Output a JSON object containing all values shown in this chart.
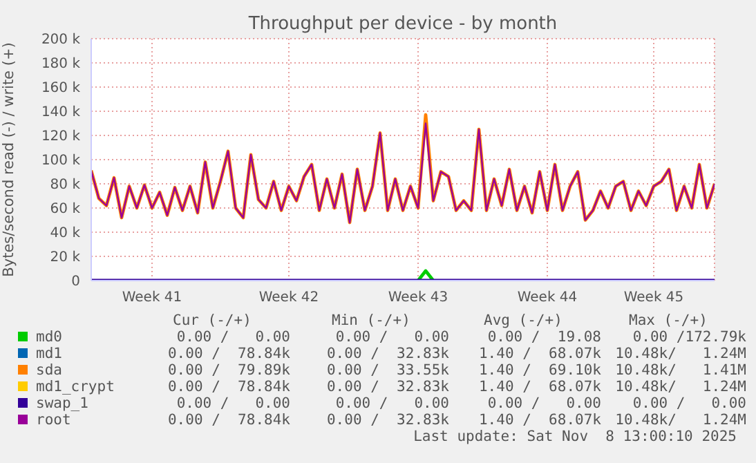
{
  "chart_data": {
    "type": "line",
    "title": "Throughput per device - by month",
    "ylabel": "Bytes/second read (-) / write (+)",
    "categories": [
      null,
      null,
      null,
      null,
      null,
      null,
      null,
      null,
      "Week 41",
      null,
      null,
      null,
      null,
      null,
      null,
      null,
      null,
      null,
      null,
      null,
      null,
      null,
      null,
      null,
      null,
      null,
      "Week 42",
      null,
      null,
      null,
      null,
      null,
      null,
      null,
      null,
      null,
      null,
      null,
      null,
      null,
      null,
      null,
      null,
      "Week 43",
      null,
      null,
      null,
      null,
      null,
      null,
      null,
      null,
      null,
      null,
      null,
      null,
      null,
      null,
      null,
      null,
      "Week 44",
      null,
      null,
      null,
      null,
      null,
      null,
      null,
      null,
      null,
      null,
      null,
      null,
      null,
      "Week 45",
      null,
      null,
      null,
      null,
      null,
      null,
      null,
      null
    ],
    "ylim": [
      0,
      200000
    ],
    "yticks": [
      0,
      {
        "value": 20000,
        "label": "20 k"
      },
      {
        "value": 40000,
        "label": "40 k"
      },
      {
        "value": 60000,
        "label": "60 k"
      },
      {
        "value": 80000,
        "label": "80 k"
      },
      {
        "value": 100000,
        "label": "100 k"
      },
      {
        "value": 120000,
        "label": "120 k"
      },
      {
        "value": 140000,
        "label": "140 k"
      },
      {
        "value": 160000,
        "label": "160 k"
      },
      {
        "value": 180000,
        "label": "180 k"
      },
      {
        "value": 200000,
        "label": "200 k"
      }
    ],
    "grid": true,
    "legend": "bottom",
    "series": [
      {
        "name": "md0",
        "color": "#00cc00",
        "values": [
          null,
          null,
          null,
          null,
          null,
          null,
          null,
          null,
          null,
          null,
          null,
          null,
          null,
          null,
          null,
          null,
          null,
          null,
          null,
          null,
          null,
          null,
          null,
          null,
          null,
          null,
          null,
          null,
          null,
          null,
          null,
          null,
          null,
          null,
          null,
          null,
          null,
          null,
          null,
          null,
          null,
          null,
          null,
          0,
          8000,
          0,
          null,
          null,
          null,
          null,
          null,
          null,
          null,
          null,
          null,
          null,
          null,
          null,
          null,
          null,
          null,
          null,
          null,
          null,
          null,
          null,
          null,
          null,
          null,
          null,
          null,
          null,
          null,
          null,
          null,
          null,
          null,
          null,
          null,
          null,
          null,
          null,
          null
        ]
      },
      {
        "name": "md1",
        "color": "#0066b3",
        "values": [
          null,
          null,
          null,
          null,
          null,
          null,
          null,
          null,
          null,
          null,
          null,
          null,
          null,
          null,
          null,
          null,
          null,
          null,
          null,
          null,
          null,
          null,
          null,
          null,
          null,
          null,
          null,
          null,
          null,
          null,
          null,
          null,
          null,
          null,
          null,
          null,
          null,
          null,
          null,
          null,
          null,
          null,
          null,
          null,
          null,
          null,
          null,
          null,
          null,
          null,
          null,
          null,
          null,
          null,
          null,
          null,
          null,
          null,
          null,
          null,
          null,
          null,
          null,
          null,
          null,
          null,
          null,
          null,
          null,
          null,
          null,
          null,
          null,
          null,
          null,
          null,
          null,
          null,
          null,
          null,
          null,
          null,
          null
        ]
      },
      {
        "name": "sda",
        "color": "#ff8000",
        "values": [
          91000,
          68000,
          62000,
          85000,
          52000,
          78000,
          60000,
          79000,
          60000,
          73000,
          54000,
          77000,
          58000,
          78000,
          56000,
          98000,
          60000,
          82000,
          107000,
          60000,
          52000,
          104000,
          67000,
          60000,
          82000,
          58000,
          78000,
          66000,
          86000,
          96000,
          58000,
          84000,
          60000,
          88000,
          48000,
          92000,
          58000,
          78000,
          122000,
          58000,
          84000,
          58000,
          78000,
          60000,
          137000,
          66000,
          90000,
          86000,
          58000,
          66000,
          58000,
          125000,
          58000,
          84000,
          62000,
          92000,
          58000,
          78000,
          56000,
          90000,
          58000,
          96000,
          58000,
          78000,
          90000,
          50000,
          58000,
          74000,
          60000,
          78000,
          82000,
          58000,
          74000,
          62000,
          78000,
          82000,
          92000,
          58000,
          78000,
          60000,
          96000,
          60000,
          80000
        ]
      },
      {
        "name": "md1_crypt",
        "color": "#ffcc00",
        "values": [
          null,
          null,
          null,
          null,
          null,
          null,
          null,
          null,
          null,
          null,
          null,
          null,
          null,
          null,
          null,
          null,
          null,
          null,
          null,
          null,
          null,
          null,
          null,
          null,
          null,
          null,
          null,
          null,
          null,
          null,
          null,
          null,
          null,
          null,
          null,
          null,
          null,
          null,
          null,
          null,
          null,
          null,
          null,
          null,
          null,
          null,
          null,
          null,
          null,
          null,
          null,
          null,
          null,
          null,
          null,
          null,
          null,
          null,
          null,
          null,
          null,
          null,
          null,
          null,
          null,
          null,
          null,
          null,
          null,
          null,
          null,
          null,
          null,
          null,
          null,
          null,
          null,
          null,
          null,
          null,
          null,
          null,
          null
        ]
      },
      {
        "name": "swap_1",
        "color": "#330099",
        "values": [
          0,
          0,
          0,
          0,
          0,
          0,
          0,
          0,
          0,
          0,
          0,
          0,
          0,
          0,
          0,
          0,
          0,
          0,
          0,
          0,
          0,
          0,
          0,
          0,
          0,
          0,
          0,
          0,
          0,
          0,
          0,
          0,
          0,
          0,
          0,
          0,
          0,
          0,
          0,
          0,
          0,
          0,
          0,
          0,
          0,
          0,
          0,
          0,
          0,
          0,
          0,
          0,
          0,
          0,
          0,
          0,
          0,
          0,
          0,
          0,
          0,
          0,
          0,
          0,
          0,
          0,
          0,
          0,
          0,
          0,
          0,
          0,
          0,
          0,
          0,
          0,
          0,
          0,
          0,
          0,
          0,
          0,
          0
        ]
      },
      {
        "name": "root",
        "color": "#990099",
        "values": [
          91000,
          68000,
          62000,
          85000,
          52000,
          78000,
          60000,
          79000,
          60000,
          73000,
          54000,
          77000,
          58000,
          78000,
          56000,
          98000,
          60000,
          82000,
          107000,
          60000,
          52000,
          104000,
          67000,
          60000,
          82000,
          58000,
          78000,
          66000,
          86000,
          96000,
          58000,
          84000,
          60000,
          88000,
          48000,
          92000,
          58000,
          78000,
          122000,
          58000,
          84000,
          58000,
          78000,
          60000,
          130000,
          66000,
          90000,
          86000,
          58000,
          66000,
          58000,
          125000,
          58000,
          84000,
          62000,
          92000,
          58000,
          78000,
          56000,
          90000,
          58000,
          96000,
          58000,
          78000,
          90000,
          50000,
          58000,
          74000,
          60000,
          78000,
          82000,
          58000,
          74000,
          62000,
          78000,
          82000,
          92000,
          58000,
          78000,
          60000,
          96000,
          60000,
          80000
        ]
      }
    ],
    "annotations": [
      "Cur (-/+)",
      "Min (-/+)",
      "Avg (-/+)",
      "Max (-/+)",
      "0.00 /   0.00",
      "0.00 /   0.00",
      "0.00 /  19.08",
      "0.00 /172.79k",
      "0.00 /  78.84k",
      "0.00 /  32.83k",
      "1.40 /  68.07k",
      "10.48k/   1.24M",
      "0.00 /  79.89k",
      "0.00 /  33.55k",
      "1.40 /  69.10k",
      "10.48k/   1.41M",
      "0.00 /  78.84k",
      "0.00 /  32.83k",
      "1.40 /  68.07k",
      "10.48k/   1.24M",
      "0.00 /   0.00",
      "0.00 /   0.00",
      "0.00 /   0.00",
      "0.00 /   0.00",
      "0.00 /  78.84k",
      "0.00 /  32.83k",
      "1.40 /  68.07k",
      "10.48k/   1.24M",
      "Last update: Sat Nov  8 13:00:10 2025"
    ]
  }
}
